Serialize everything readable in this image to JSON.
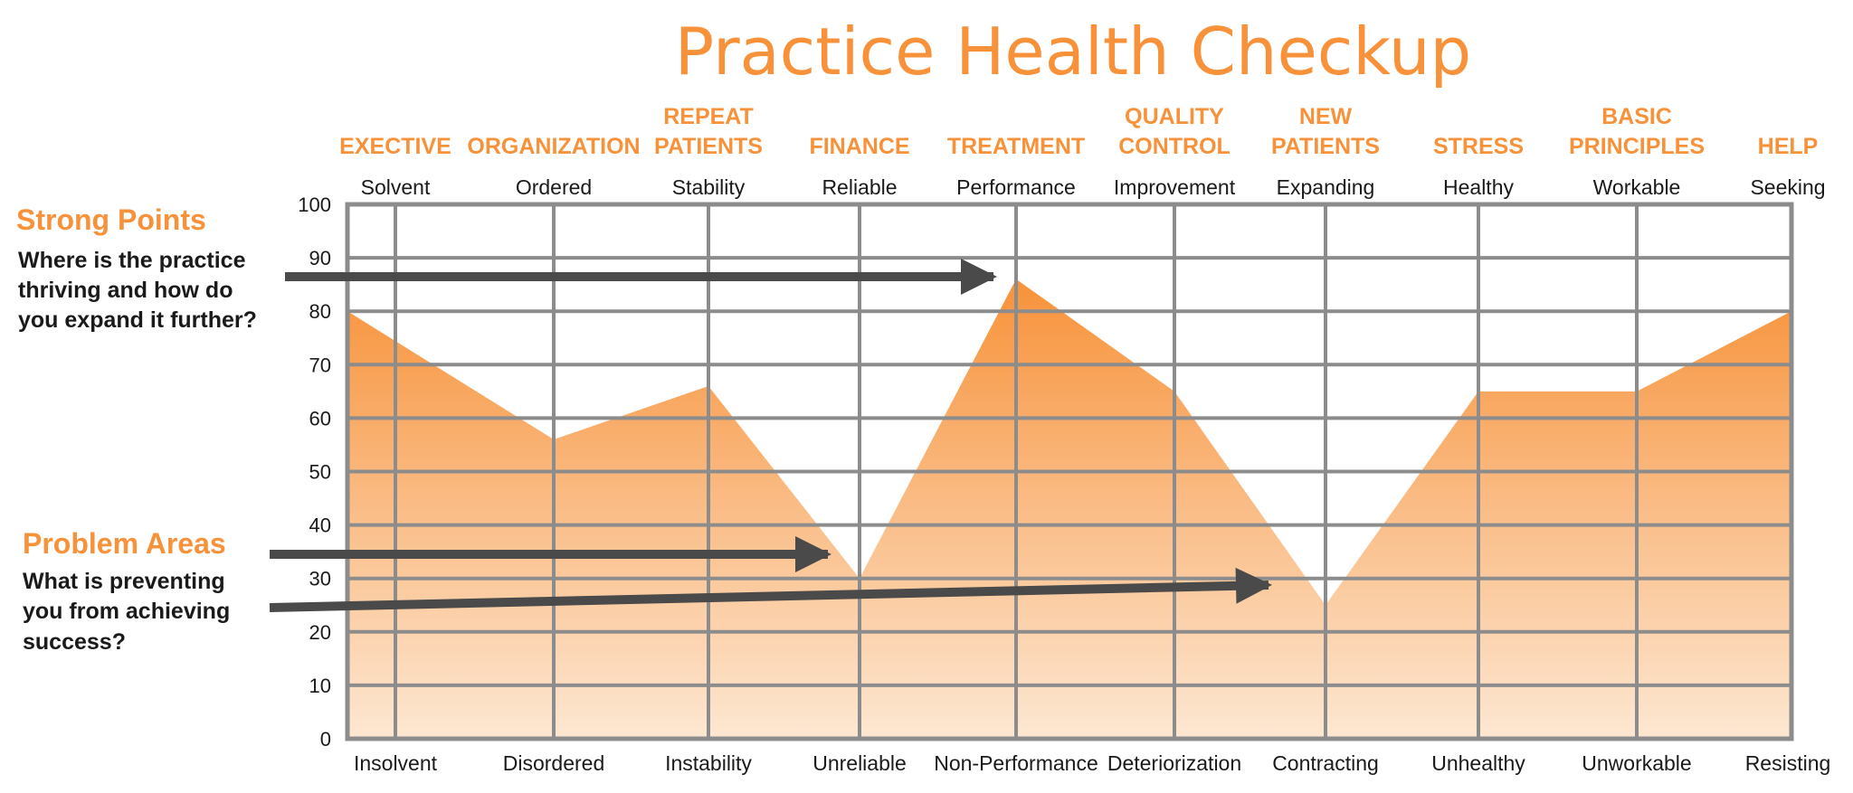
{
  "chart_data": {
    "type": "area",
    "title": "Practice Health Checkup",
    "categories": [
      [
        "EXECTIVE"
      ],
      [
        "ORGANIZATION"
      ],
      [
        "REPEAT",
        "PATIENTS"
      ],
      [
        "FINANCE"
      ],
      [
        "TREATMENT"
      ],
      [
        "QUALITY",
        "CONTROL"
      ],
      [
        "NEW",
        "PATIENTS"
      ],
      [
        "STRESS"
      ],
      [
        "BASIC",
        "PRINCIPLES"
      ],
      [
        "HELP"
      ]
    ],
    "top_labels": [
      "Solvent",
      "Ordered",
      "Stability",
      "Reliable",
      "Performance",
      "Improvement",
      "Expanding",
      "Healthy",
      "Workable",
      "Seeking"
    ],
    "bottom_labels": [
      "Insolvent",
      "Disordered",
      "Instability",
      "Unreliable",
      "Non-Performance",
      "Deteriorization",
      "Contracting",
      "Unhealthy",
      "Unworkable",
      "Resisting"
    ],
    "values": [
      80,
      56,
      66,
      30,
      86,
      65,
      25,
      65,
      65,
      80
    ],
    "ylim": [
      0,
      100
    ],
    "yticks": [
      0,
      10,
      20,
      30,
      40,
      50,
      60,
      70,
      80,
      90,
      100
    ],
    "grid": true,
    "colors": {
      "accent": "#F7923A",
      "fill_top": "#F7923A",
      "fill_bottom": "#FDE7D2",
      "grid": "#8c8c8c",
      "arrow": "#4a4a4a"
    }
  },
  "annotations": {
    "strong": {
      "heading": "Strong Points",
      "lines": [
        "Where is the practice",
        "thriving and how do",
        "you expand it further?"
      ]
    },
    "problem": {
      "heading": "Problem Areas",
      "lines": [
        "What is preventing",
        "you from achieving",
        "success?"
      ]
    }
  }
}
